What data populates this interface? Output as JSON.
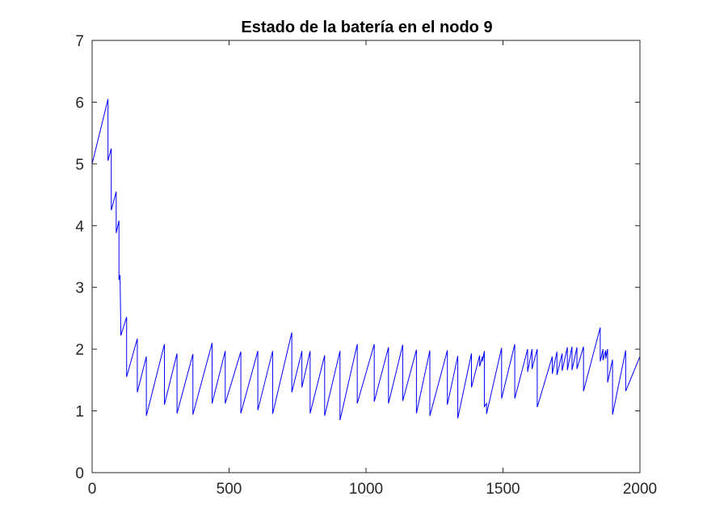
{
  "chart_data": {
    "type": "line",
    "title": "Estado de la batería en el nodo 9",
    "xlabel": "",
    "ylabel": "",
    "xlim": [
      0,
      2000
    ],
    "ylim": [
      0,
      7
    ],
    "xticks": [
      0,
      500,
      1000,
      1500,
      2000
    ],
    "yticks": [
      0,
      1,
      2,
      3,
      4,
      5,
      6,
      7
    ],
    "grid": false,
    "legend": "none",
    "series": [
      {
        "color": "#0000ff",
        "points": [
          [
            0,
            5.0
          ],
          [
            58,
            6.05
          ],
          [
            58,
            5.05
          ],
          [
            70,
            5.25
          ],
          [
            70,
            4.25
          ],
          [
            88,
            4.55
          ],
          [
            88,
            3.88
          ],
          [
            98,
            4.08
          ],
          [
            98,
            3.12
          ],
          [
            102,
            3.2
          ],
          [
            105,
            2.22
          ],
          [
            126,
            2.52
          ],
          [
            126,
            1.55
          ],
          [
            165,
            2.17
          ],
          [
            165,
            1.3
          ],
          [
            198,
            1.88
          ],
          [
            198,
            0.92
          ],
          [
            264,
            2.08
          ],
          [
            264,
            1.1
          ],
          [
            310,
            1.93
          ],
          [
            310,
            0.96
          ],
          [
            368,
            1.92
          ],
          [
            368,
            0.94
          ],
          [
            438,
            2.1
          ],
          [
            438,
            1.12
          ],
          [
            486,
            1.97
          ],
          [
            486,
            1.12
          ],
          [
            543,
            1.96
          ],
          [
            543,
            0.96
          ],
          [
            605,
            1.97
          ],
          [
            605,
            1.01
          ],
          [
            659,
            1.97
          ],
          [
            659,
            0.95
          ],
          [
            729,
            2.27
          ],
          [
            729,
            1.3
          ],
          [
            766,
            1.97
          ],
          [
            766,
            1.38
          ],
          [
            796,
            1.97
          ],
          [
            796,
            0.96
          ],
          [
            849,
            1.9
          ],
          [
            849,
            0.92
          ],
          [
            905,
            1.97
          ],
          [
            905,
            0.85
          ],
          [
            968,
            2.08
          ],
          [
            968,
            1.12
          ],
          [
            1030,
            2.08
          ],
          [
            1030,
            1.15
          ],
          [
            1082,
            2.03
          ],
          [
            1082,
            1.12
          ],
          [
            1134,
            2.07
          ],
          [
            1134,
            1.16
          ],
          [
            1184,
            1.99
          ],
          [
            1184,
            0.96
          ],
          [
            1233,
            1.98
          ],
          [
            1233,
            0.92
          ],
          [
            1297,
            1.98
          ],
          [
            1297,
            1.1
          ],
          [
            1335,
            1.89
          ],
          [
            1335,
            0.88
          ],
          [
            1385,
            1.93
          ],
          [
            1385,
            1.38
          ],
          [
            1415,
            1.9
          ],
          [
            1415,
            1.72
          ],
          [
            1425,
            1.88
          ],
          [
            1425,
            1.8
          ],
          [
            1432,
            1.97
          ],
          [
            1432,
            1.07
          ],
          [
            1440,
            1.12
          ],
          [
            1440,
            0.95
          ],
          [
            1495,
            2.02
          ],
          [
            1495,
            1.2
          ],
          [
            1543,
            2.08
          ],
          [
            1543,
            1.2
          ],
          [
            1590,
            2.0
          ],
          [
            1590,
            1.63
          ],
          [
            1606,
            2.0
          ],
          [
            1606,
            1.68
          ],
          [
            1625,
            2.0
          ],
          [
            1625,
            1.06
          ],
          [
            1680,
            1.88
          ],
          [
            1680,
            1.6
          ],
          [
            1697,
            1.96
          ],
          [
            1697,
            1.58
          ],
          [
            1716,
            1.93
          ],
          [
            1716,
            1.65
          ],
          [
            1735,
            2.03
          ],
          [
            1735,
            1.66
          ],
          [
            1752,
            2.04
          ],
          [
            1752,
            1.66
          ],
          [
            1770,
            2.03
          ],
          [
            1770,
            1.68
          ],
          [
            1794,
            2.04
          ],
          [
            1794,
            1.32
          ],
          [
            1855,
            2.35
          ],
          [
            1855,
            1.8
          ],
          [
            1865,
            2.0
          ],
          [
            1865,
            1.82
          ],
          [
            1875,
            1.98
          ],
          [
            1875,
            1.85
          ],
          [
            1882,
            2.0
          ],
          [
            1882,
            1.46
          ],
          [
            1900,
            1.83
          ],
          [
            1900,
            0.94
          ],
          [
            1948,
            1.98
          ],
          [
            1948,
            1.32
          ],
          [
            2000,
            1.88
          ]
        ]
      }
    ]
  }
}
